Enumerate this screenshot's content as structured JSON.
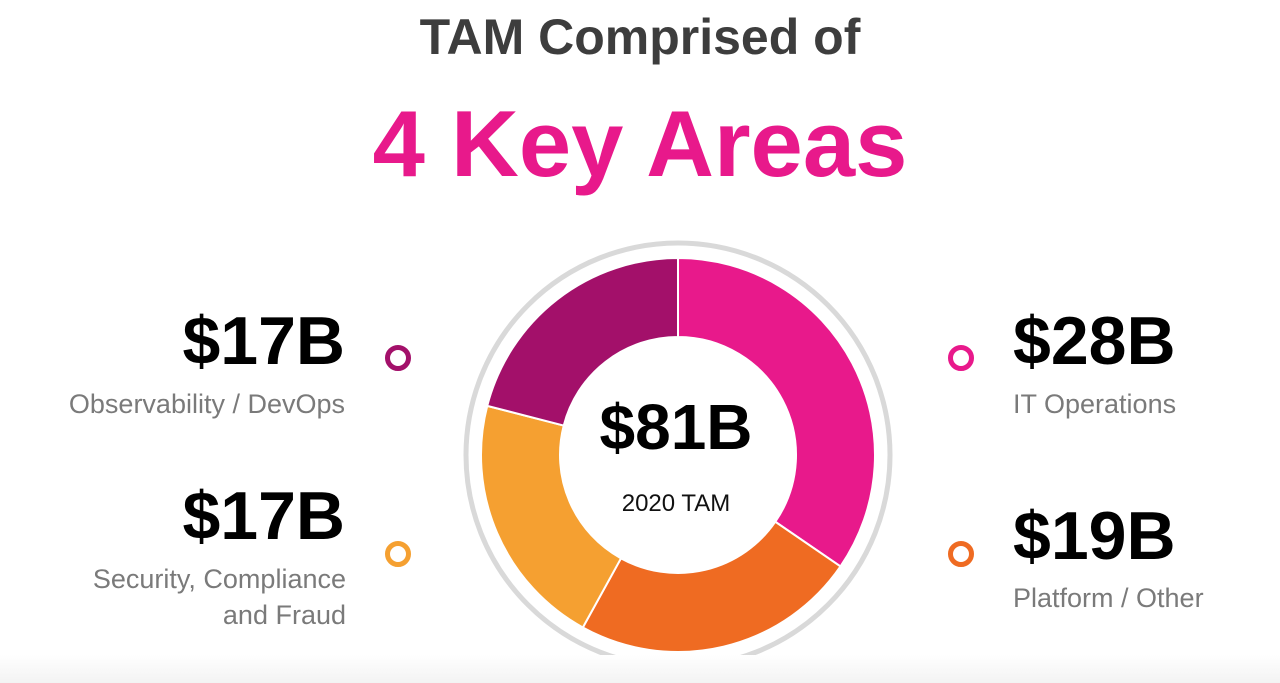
{
  "header": {
    "line1": "TAM Comprised of",
    "line2": "4 Key Areas"
  },
  "colors": {
    "title": "#3d3d3d",
    "accent": "#e8198b",
    "it_operations": "#e8198b",
    "platform_other": "#ef6b22",
    "security": "#f5a031",
    "observability": "#a3106a",
    "ring": "#d9d9d9"
  },
  "center": {
    "value": "$81B",
    "label": "2020 TAM"
  },
  "segments": {
    "observability": {
      "value": "$17B",
      "label": "Observability / DevOps"
    },
    "security": {
      "value": "$17B",
      "label_line1": "Security, Compliance",
      "label_line2": "and Fraud"
    },
    "it_operations": {
      "value": "$28B",
      "label": "IT Operations"
    },
    "platform_other": {
      "value": "$19B",
      "label": "Platform / Other"
    }
  },
  "chart_data": {
    "type": "pie",
    "style": "donut",
    "center_value": "$81B",
    "center_label": "2020 TAM",
    "unit": "$B",
    "categories": [
      "IT Operations",
      "Platform / Other",
      "Security, Compliance and Fraud",
      "Observability / DevOps"
    ],
    "values": [
      28,
      19,
      17,
      17
    ],
    "colors": [
      "#e8198b",
      "#ef6b22",
      "#f5a031",
      "#a3106a"
    ],
    "start": "top",
    "direction": "clockwise"
  }
}
